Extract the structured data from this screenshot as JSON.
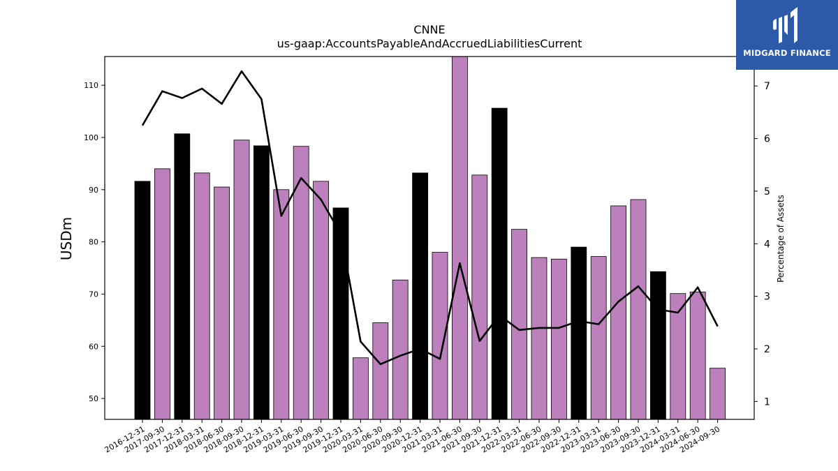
{
  "chart_data": {
    "type": "bar",
    "title": "CNNE",
    "subtitle": "us-gaap:AccountsPayableAndAccruedLiabilitiesCurrent",
    "ylabel": "USDm",
    "y2label": "Percentage of Assets",
    "ylim": [
      46,
      115.5
    ],
    "y2lim": [
      0.66,
      7.56
    ],
    "yticks": [
      50,
      60,
      70,
      80,
      90,
      100,
      110
    ],
    "y2ticks": [
      1,
      2,
      3,
      4,
      5,
      6,
      7
    ],
    "categories": [
      "2016-12-31",
      "2017-09-30",
      "2017-12-31",
      "2018-03-31",
      "2018-06-30",
      "2018-09-30",
      "2018-12-31",
      "2019-03-31",
      "2019-06-30",
      "2019-09-30",
      "2019-12-31",
      "2020-03-31",
      "2020-06-30",
      "2020-09-30",
      "2020-12-31",
      "2021-03-31",
      "2021-06-30",
      "2021-09-30",
      "2021-12-31",
      "2022-03-31",
      "2022-06-30",
      "2022-09-30",
      "2022-12-31",
      "2023-03-31",
      "2023-06-30",
      "2023-09-30",
      "2023-12-31",
      "2024-03-31",
      "2024-06-30",
      "2024-09-30"
    ],
    "series": [
      {
        "kind": "bar",
        "values": [
          91.6,
          94.0,
          100.7,
          93.2,
          90.5,
          99.5,
          98.4,
          90.0,
          98.3,
          91.6,
          86.5,
          57.8,
          64.5,
          72.7,
          93.2,
          78.0,
          116.0,
          92.8,
          105.6,
          82.4,
          77.0,
          76.7,
          79.0,
          77.2,
          86.9,
          88.1,
          74.3,
          70.1,
          70.4,
          55.8
        ],
        "year_end": [
          true,
          false,
          true,
          false,
          false,
          false,
          true,
          false,
          false,
          false,
          true,
          false,
          false,
          false,
          true,
          false,
          false,
          false,
          true,
          false,
          false,
          false,
          true,
          false,
          false,
          false,
          true,
          false,
          false,
          false
        ]
      },
      {
        "kind": "line",
        "axis": "right",
        "values": [
          6.25,
          6.9,
          6.77,
          6.95,
          6.66,
          7.28,
          6.75,
          4.53,
          5.25,
          4.84,
          4.19,
          2.14,
          1.71,
          1.87,
          2.0,
          1.81,
          3.63,
          2.15,
          2.64,
          2.36,
          2.4,
          2.4,
          2.53,
          2.47,
          2.9,
          3.19,
          2.75,
          2.69,
          3.17,
          2.43
        ]
      }
    ],
    "colors": {
      "bar": "#bc80bd",
      "bar_year_end": "#000000",
      "line": "#000000"
    },
    "grid": false,
    "legend": "none"
  },
  "logo": {
    "text": "MIDGARD FINANCE",
    "background": "#2c5aa8"
  }
}
